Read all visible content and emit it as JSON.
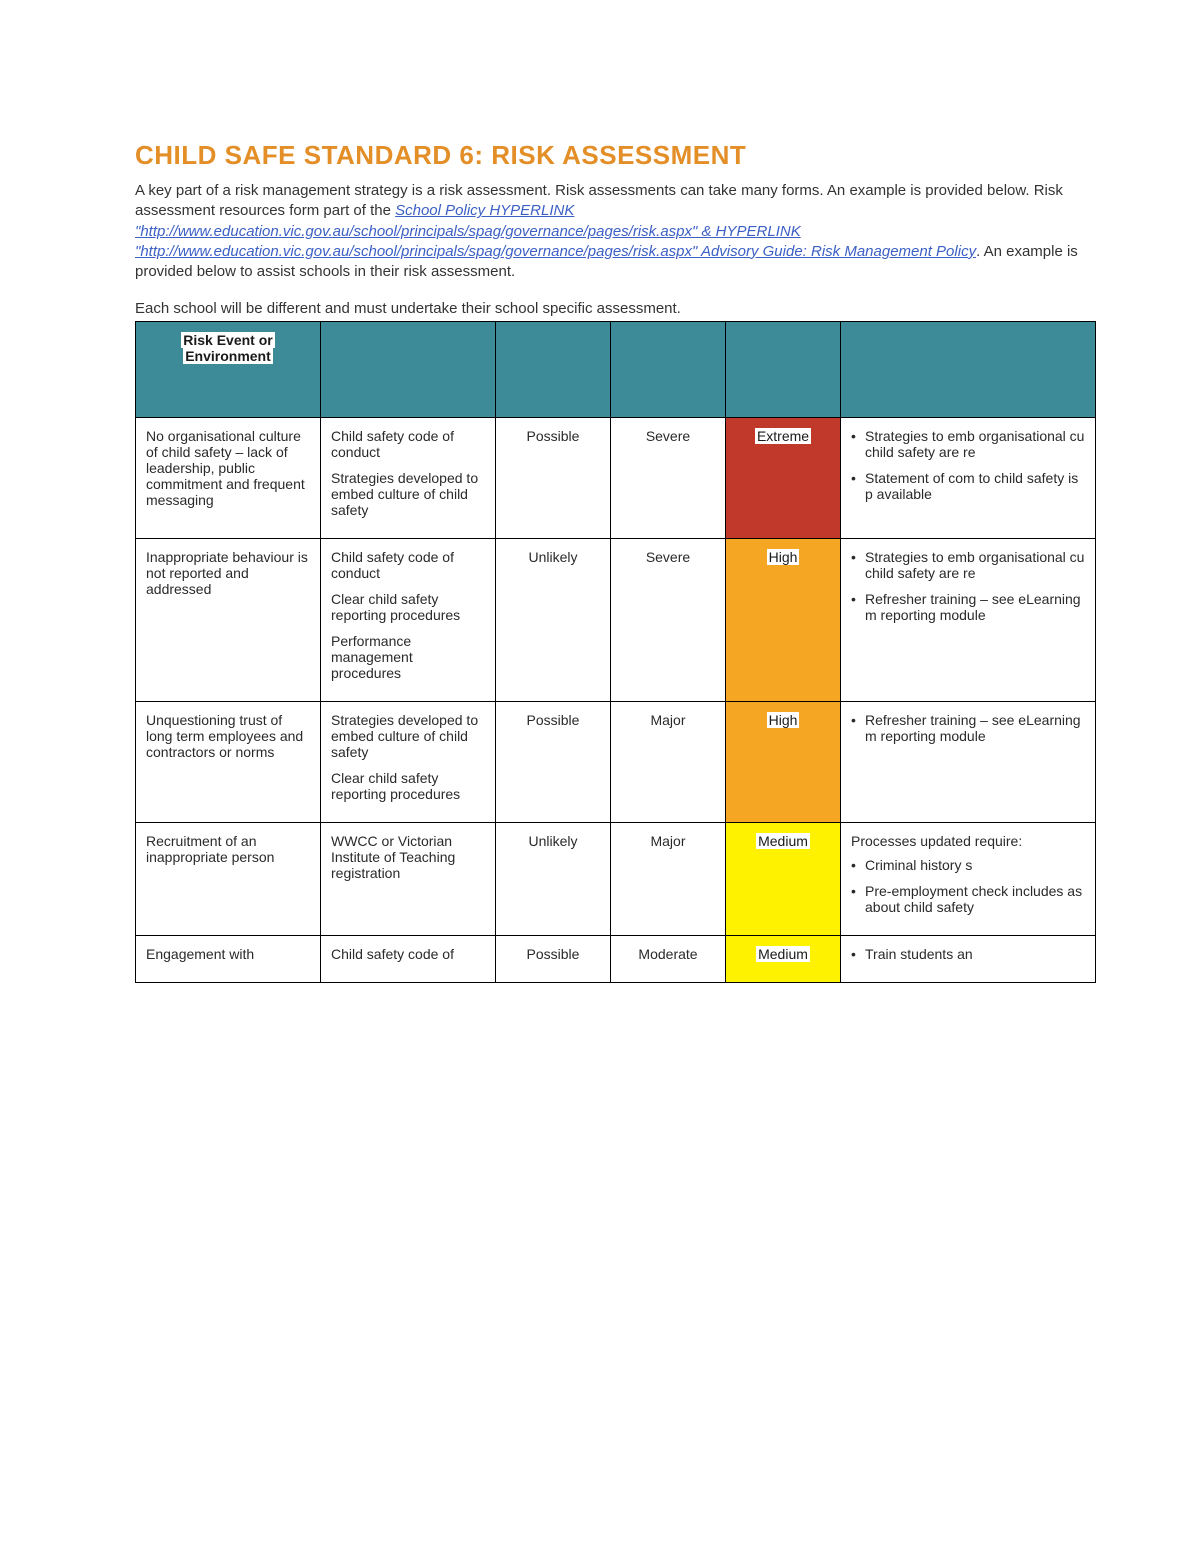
{
  "title": "CHILD SAFE STANDARD 6: RISK ASSESSMENT",
  "intro": {
    "pre": "A key part of a risk management strategy is a risk assessment. Risk assessments can take many forms. An example is provided below. Risk assessment resources form part of the ",
    "link1": "School Policy  HYPERLINK \"http://www.education.vic.gov.au/school/principals/spag/governance/pages/risk.aspx\" & HYPERLINK \"http://www.education.vic.gov.au/school/principals/spag/governance/pages/risk.aspx\" Advisory Guide: Risk Management Policy",
    "post": ". An example is provided below to assist schools in their risk assessment."
  },
  "sub_intro": "Each school will be different and must undertake their school specific assessment.",
  "header": {
    "col1_line1": "Risk Event or",
    "col1_line2": "Environment"
  },
  "colors": {
    "extreme": "#c0392b",
    "high": "#f5a623",
    "medium": "#fff200",
    "header_bg": "#3d8a99"
  },
  "rows": [
    {
      "risk": "No organisational culture of child safety – lack of leadership, public commitment and frequent messaging",
      "controls": [
        "Child safety code of conduct",
        "Strategies developed to embed culture of child safety"
      ],
      "likelihood": "Possible",
      "consequence": "Severe",
      "rating": "Extreme",
      "rating_color": "#c0392b",
      "rating_text_color": "#ffffff",
      "treatments": [
        "Strategies to emb organisational cu child safety are re",
        "Statement of com to child safety is p available"
      ],
      "treatments_style": "bullets"
    },
    {
      "risk": "Inappropriate behaviour is not reported and addressed",
      "controls": [
        "Child safety code of conduct",
        "Clear child safety reporting procedures",
        "Performance management procedures"
      ],
      "likelihood": "Unlikely",
      "consequence": "Severe",
      "rating": "High",
      "rating_color": "#f5a623",
      "rating_text_color": "#1a1a1a",
      "treatments": [
        "Strategies to emb organisational cu child safety are re",
        "Refresher training – see eLearning m reporting module"
      ],
      "treatments_style": "bullets"
    },
    {
      "risk": "Unquestioning trust of long term employees and contractors or norms",
      "controls": [
        "Strategies developed to embed culture of child safety",
        "Clear child safety reporting procedures"
      ],
      "likelihood": "Possible",
      "consequence": "Major",
      "rating": "High",
      "rating_color": "#f5a623",
      "rating_text_color": "#1a1a1a",
      "treatments": [
        "Refresher training – see eLearning m reporting module"
      ],
      "treatments_style": "bullets"
    },
    {
      "risk": "Recruitment of an inappropriate person",
      "controls": [
        "WWCC or Victorian Institute of Teaching registration"
      ],
      "likelihood": "Unlikely",
      "consequence": "Major",
      "rating": "Medium",
      "rating_color": "#fff200",
      "rating_text_color": "#1a1a1a",
      "treatments_lead": "Processes updated require:",
      "treatments": [
        "Criminal history s",
        "Pre-employment check includes as about child safety"
      ],
      "treatments_style": "lead_bullets"
    },
    {
      "risk": "Engagement with",
      "controls": [
        "Child safety code of"
      ],
      "likelihood": "Possible",
      "consequence": "Moderate",
      "rating": "Medium",
      "rating_color": "#fff200",
      "rating_text_color": "#1a1a1a",
      "treatments": [
        "Train students an"
      ],
      "treatments_style": "bullets"
    }
  ]
}
